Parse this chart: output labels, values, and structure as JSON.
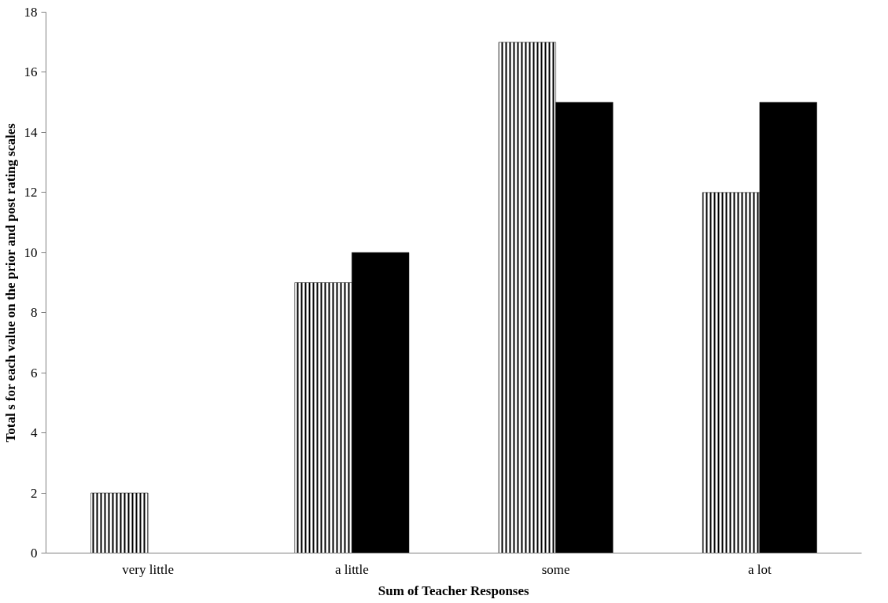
{
  "chart_data": {
    "type": "bar",
    "xlabel": "Sum of Teacher Responses",
    "ylabel": "Total s for each value on the prior and post rating scales",
    "categories": [
      "very little",
      "a little",
      "some",
      "a lot"
    ],
    "series": [
      {
        "color": "#000000",
        "values": [
          2,
          9,
          17,
          12
        ]
      },
      {
        "color": "#000000",
        "values": [
          0,
          10,
          15,
          15
        ]
      }
    ],
    "ylim": [
      0,
      18
    ],
    "yticks": [
      0,
      2,
      4,
      6,
      8,
      10,
      12,
      14,
      16,
      18
    ],
    "grid": false
  }
}
